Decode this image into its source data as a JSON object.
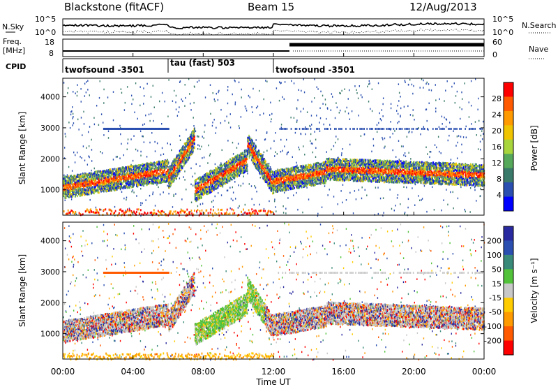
{
  "header": {
    "title": "Blackstone (fitACF)",
    "beam": "Beam 15",
    "date": "12/Aug/2013"
  },
  "left_labels": {
    "nsky": "N.Sky",
    "freq_line1": "Freq.",
    "freq_line2": "[MHz]",
    "cpid": "CPID"
  },
  "right_labels": {
    "nsearch": "N.Search",
    "nave": "Nave"
  },
  "noise_panel": {
    "y_ticks_left": [
      "10^5",
      "10^0"
    ],
    "y_ticks_right": [
      "10^5",
      "10^0"
    ]
  },
  "freq_panel": {
    "y_ticks_left": [
      "18",
      "8"
    ],
    "y_ticks_right": [
      "60",
      "0"
    ]
  },
  "cpid_panel": {
    "segments": [
      {
        "label": "twofsound -3501",
        "start_hour": 0
      },
      {
        "label": "tau (fast) 503",
        "start_hour": 6
      },
      {
        "label": "twofsound -3501",
        "start_hour": 12
      }
    ]
  },
  "x_axis": {
    "label": "Time UT",
    "tick_labels": [
      "00:00",
      "04:00",
      "08:00",
      "12:00",
      "16:00",
      "20:00",
      "00:00"
    ],
    "range_hours": [
      0,
      24
    ]
  },
  "power_panel": {
    "ylabel": "Slant Range [km]",
    "y_tick_labels": [
      "1000",
      "2000",
      "3000",
      "4000"
    ],
    "colorbar_label": "Power [dB]",
    "colorbar_ticks": [
      "28",
      "24",
      "20",
      "16",
      "12",
      "8",
      "4"
    ],
    "colorbar_colors": [
      "#ff0000",
      "#ff5a00",
      "#ff9a00",
      "#f0c400",
      "#a9d53c",
      "#56a85a",
      "#3a7a6a",
      "#2a4fb0",
      "#0000ff"
    ]
  },
  "velocity_panel": {
    "ylabel": "Slant Range [km]",
    "y_tick_labels": [
      "1000",
      "2000",
      "3000",
      "4000"
    ],
    "colorbar_label": "Velocity [m s⁻¹]",
    "colorbar_ticks": [
      "200",
      "100",
      "50",
      "15",
      "-15",
      "-50",
      "-100",
      "-200"
    ],
    "colorbar_colors": [
      "#2a2aa0",
      "#2a4fb0",
      "#3a8a7a",
      "#52c23a",
      "#c8c8c8",
      "#ffcc00",
      "#ff9a00",
      "#ff5a00",
      "#ff0000"
    ]
  },
  "chart_data": {
    "type": "heatmap",
    "x_unit": "hours UT",
    "xlim": [
      0,
      24
    ],
    "ylim_km": [
      180,
      4600
    ],
    "panels": [
      "Power [dB]",
      "Velocity [m s⁻¹]"
    ],
    "cpid_changes_hours": [
      6,
      12
    ],
    "scatter_bands": [
      {
        "from_hour": 0,
        "to_hour": 6,
        "range_km_start": 1100,
        "range_km_end": 1650,
        "power_db": 26,
        "velocity": -10
      },
      {
        "from_hour": 6,
        "to_hour": 7.5,
        "range_km_start": 1400,
        "range_km_end": 2700,
        "power_db": 16,
        "velocity": 0
      },
      {
        "from_hour": 7.5,
        "to_hour": 10.5,
        "range_km_start": 1000,
        "range_km_end": 2000,
        "power_db": 20,
        "velocity": 40
      },
      {
        "from_hour": 10.5,
        "to_hour": 12,
        "range_km_start": 2500,
        "range_km_end": 1200,
        "power_db": 22,
        "velocity": -20
      },
      {
        "from_hour": 12,
        "to_hour": 15,
        "range_km_start": 1300,
        "range_km_end": 1600,
        "power_db": 22,
        "velocity": -5
      },
      {
        "from_hour": 15,
        "to_hour": 24,
        "range_km_start": 1700,
        "range_km_end": 1500,
        "power_db": 24,
        "velocity": -5
      }
    ],
    "ground_scatter_band_km": [
      200,
      400
    ]
  }
}
